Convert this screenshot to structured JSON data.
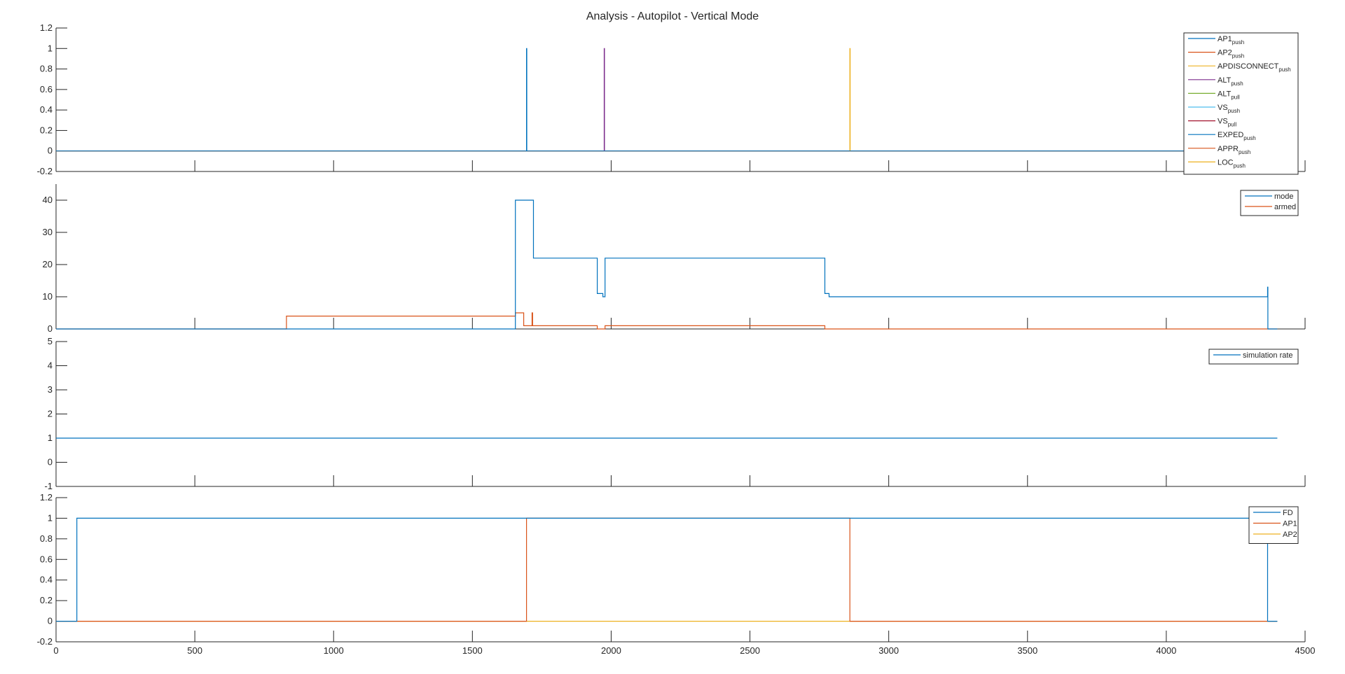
{
  "chart_data": [
    {
      "type": "line",
      "title": "Analysis - Autopilot - Vertical Mode",
      "ylim": [
        -0.2,
        1.2
      ],
      "yticks": [
        "-0.2",
        "0",
        "0.2",
        "0.4",
        "0.6",
        "0.8",
        "1",
        "1.2"
      ],
      "xlim": [
        0,
        4500
      ],
      "legend": "top-right",
      "series": [
        {
          "name": "AP1",
          "sub": "push",
          "color": "#0072BD",
          "x": [
            0,
            1695,
            1695,
            1696,
            1696,
            4400
          ],
          "y": [
            0,
            0,
            1,
            1,
            0,
            0
          ]
        },
        {
          "name": "AP2",
          "sub": "push",
          "color": "#D95319",
          "x": [
            0,
            4400
          ],
          "y": [
            0,
            0
          ]
        },
        {
          "name": "APDISCONNECT",
          "sub": "push",
          "color": "#EDB120",
          "x": [
            0,
            2860,
            2860,
            2861,
            2861,
            4400
          ],
          "y": [
            0,
            0,
            1,
            1,
            0,
            0
          ]
        },
        {
          "name": "ALT",
          "sub": "push",
          "color": "#7E2F8E",
          "x": [
            0,
            1975,
            1975,
            1976,
            1976,
            4400
          ],
          "y": [
            0,
            0,
            1,
            1,
            0,
            0
          ]
        },
        {
          "name": "ALT",
          "sub": "pull",
          "color": "#77AC30",
          "x": [
            0,
            4400
          ],
          "y": [
            0,
            0
          ]
        },
        {
          "name": "VS",
          "sub": "push",
          "color": "#4DBEEE",
          "x": [
            0,
            4400
          ],
          "y": [
            0,
            0
          ]
        },
        {
          "name": "VS",
          "sub": "pull",
          "color": "#A2142F",
          "x": [
            0,
            4400
          ],
          "y": [
            0,
            0
          ]
        },
        {
          "name": "EXPED",
          "sub": "push",
          "color": "#0072BD",
          "x": [
            0,
            4400
          ],
          "y": [
            0,
            0
          ]
        },
        {
          "name": "APPR",
          "sub": "push",
          "color": "#D95319",
          "x": [
            0,
            4400
          ],
          "y": [
            0,
            0
          ]
        },
        {
          "name": "LOC",
          "sub": "push",
          "color": "#EDB120",
          "x": [
            0,
            4400
          ],
          "y": [
            0,
            0
          ]
        }
      ]
    },
    {
      "type": "line",
      "ylim": [
        0,
        45
      ],
      "yticks": [
        "0",
        "10",
        "20",
        "30",
        "40"
      ],
      "xlim": [
        0,
        4500
      ],
      "legend": "top-right",
      "series": [
        {
          "name": "mode",
          "color": "#0072BD",
          "x": [
            0,
            1655,
            1655,
            1720,
            1720,
            1950,
            1950,
            1970,
            1970,
            1978,
            1978,
            2770,
            2770,
            2785,
            2785,
            4365,
            4365,
            4366,
            4366,
            4400
          ],
          "y": [
            0,
            0,
            40,
            40,
            22,
            22,
            11,
            11,
            10,
            10,
            22,
            22,
            11,
            11,
            10,
            10,
            13,
            13,
            0,
            0
          ]
        },
        {
          "name": "armed",
          "color": "#D95319",
          "x": [
            0,
            830,
            830,
            1655,
            1655,
            1685,
            1685,
            1715,
            1715,
            1717,
            1717,
            1950,
            1950,
            1978,
            1978,
            2770,
            2770,
            4400
          ],
          "y": [
            0,
            0,
            4,
            4,
            5,
            5,
            1,
            1,
            5,
            5,
            1,
            1,
            0,
            0,
            1,
            1,
            0,
            0
          ]
        }
      ]
    },
    {
      "type": "line",
      "ylim": [
        -1,
        5
      ],
      "yticks": [
        "-1",
        "0",
        "1",
        "2",
        "3",
        "4",
        "5"
      ],
      "xlim": [
        0,
        4500
      ],
      "legend": "top-right",
      "series": [
        {
          "name": "simulation rate",
          "color": "#0072BD",
          "x": [
            0,
            4400
          ],
          "y": [
            1,
            1
          ]
        }
      ]
    },
    {
      "type": "line",
      "ylim": [
        -0.2,
        1.2
      ],
      "yticks": [
        "-0.2",
        "0",
        "0.2",
        "0.4",
        "0.6",
        "0.8",
        "1",
        "1.2"
      ],
      "xlim": [
        0,
        4500
      ],
      "xticks": [
        "0",
        "500",
        "1000",
        "1500",
        "2000",
        "2500",
        "3000",
        "3500",
        "4000",
        "4500"
      ],
      "legend": "top-right",
      "series": [
        {
          "name": "FD",
          "color": "#0072BD",
          "x": [
            0,
            75,
            75,
            4365,
            4365,
            4400
          ],
          "y": [
            0,
            0,
            1,
            1,
            0,
            0
          ]
        },
        {
          "name": "AP1",
          "color": "#D95319",
          "x": [
            0,
            1695,
            1695,
            2860,
            2860,
            4400
          ],
          "y": [
            0,
            0,
            1,
            1,
            0,
            0
          ]
        },
        {
          "name": "AP2",
          "color": "#EDB120",
          "x": [
            0,
            4400
          ],
          "y": [
            0,
            0
          ]
        }
      ]
    }
  ]
}
